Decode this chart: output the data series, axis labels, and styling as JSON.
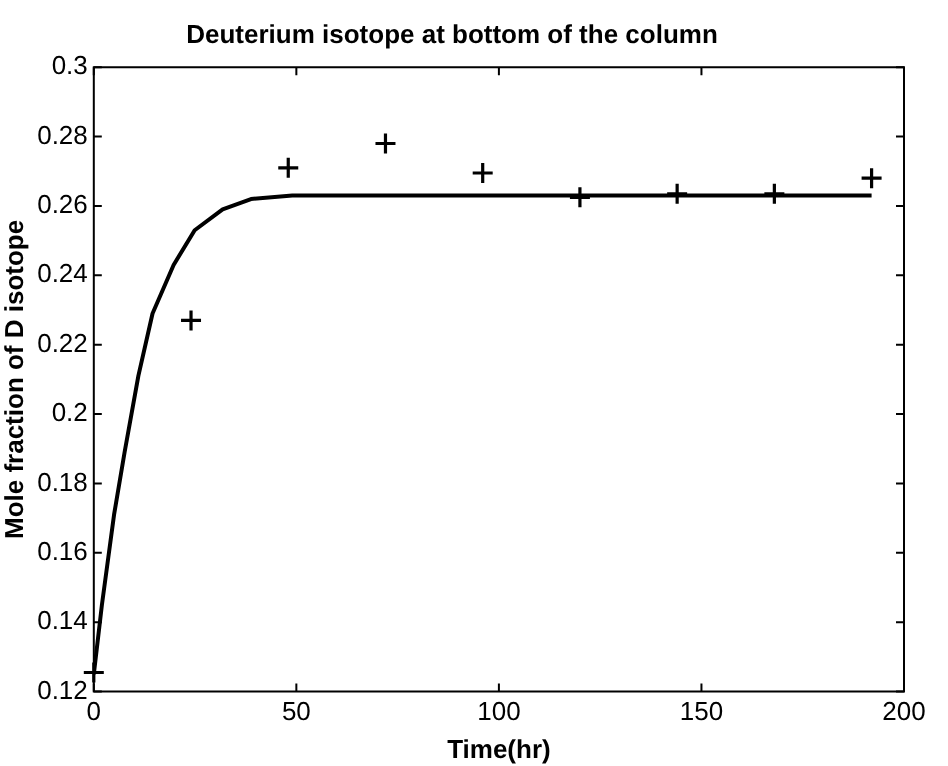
{
  "chart_data": {
    "type": "scatter",
    "title": "Deuterium isotope at bottom of the column",
    "xlabel": "Time(hr)",
    "ylabel": "Mole fraction of D isotope",
    "xlim": [
      0,
      200
    ],
    "xticks": [
      0,
      50,
      100,
      150,
      200
    ],
    "ylim": [
      0.12,
      0.3
    ],
    "yticks": [
      0.12,
      0.14,
      0.16,
      0.18,
      0.2,
      0.22,
      0.24,
      0.26,
      0.28,
      0.3
    ],
    "grid": false,
    "legend": false,
    "series": [
      {
        "type": "line",
        "color": "#000000",
        "marker": "none",
        "line_style": "solid",
        "x": [
          0,
          2,
          5,
          7.6,
          11,
          14.5,
          19.7,
          24.9,
          31.8,
          38.8,
          49,
          60,
          192
        ],
        "values": [
          0.125,
          0.145,
          0.171,
          0.189,
          0.211,
          0.229,
          0.243,
          0.253,
          0.259,
          0.262,
          0.263,
          0.263,
          0.263
        ]
      },
      {
        "color": "#000000",
        "marker": "cross",
        "x": [
          0,
          24,
          48,
          72,
          96,
          120,
          144,
          168,
          192
        ],
        "values": [
          0.1255,
          0.227,
          0.271,
          0.278,
          0.2695,
          0.2625,
          0.2635,
          0.2635,
          0.268
        ]
      }
    ]
  }
}
